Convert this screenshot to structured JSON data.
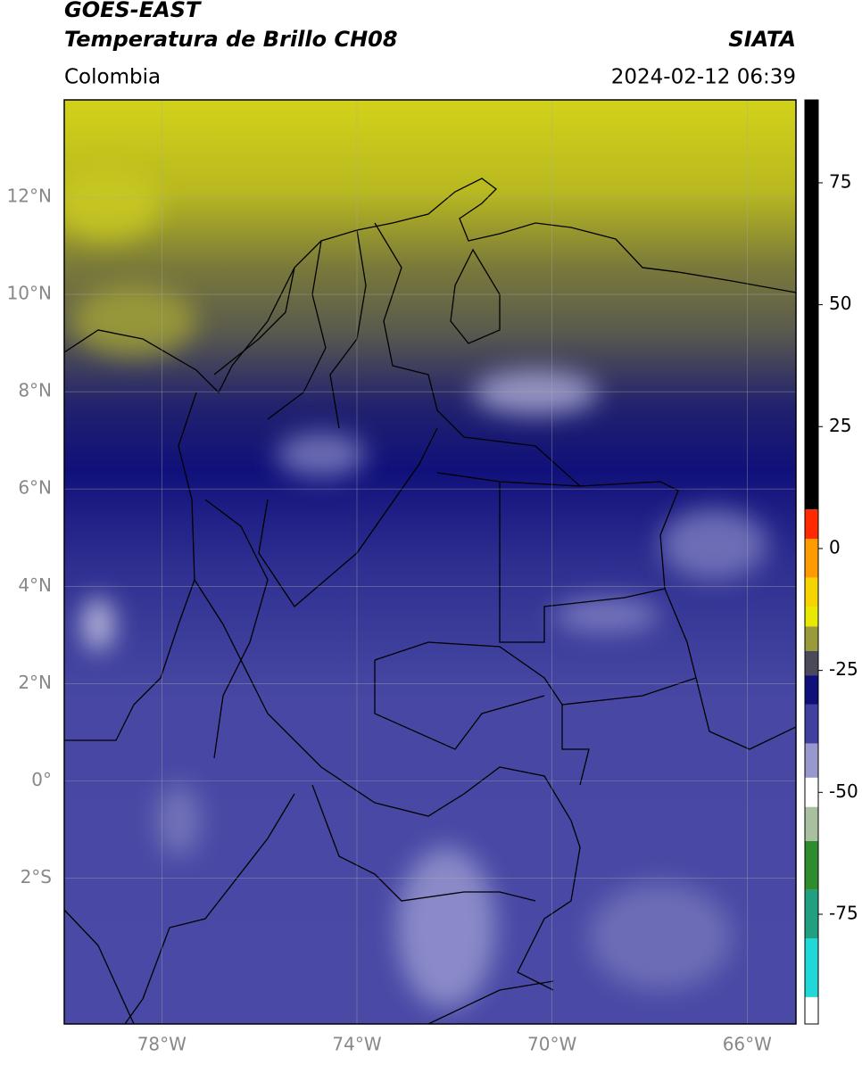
{
  "header": {
    "title": "GOES-EAST",
    "subtitle": "Temperatura de Brillo CH08",
    "source": "SIATA",
    "region": "Colombia",
    "datetime": "2024-02-12 06:39"
  },
  "map": {
    "xlim": [
      -80,
      -65
    ],
    "ylim": [
      -5,
      14
    ],
    "xticks": [
      {
        "value": -78,
        "label": "78°W"
      },
      {
        "value": -74,
        "label": "74°W"
      },
      {
        "value": -70,
        "label": "70°W"
      },
      {
        "value": -66,
        "label": "66°W"
      }
    ],
    "yticks": [
      {
        "value": 12,
        "label": "12°N"
      },
      {
        "value": 10,
        "label": "10°N"
      },
      {
        "value": 8,
        "label": "8°N"
      },
      {
        "value": 6,
        "label": "6°N"
      },
      {
        "value": 4,
        "label": "4°N"
      },
      {
        "value": 2,
        "label": "2°N"
      },
      {
        "value": 0,
        "label": "0°"
      },
      {
        "value": -2,
        "label": "2°S"
      }
    ],
    "grid": true
  },
  "colorbar": {
    "ylim": [
      -97.5,
      92
    ],
    "yticks": [
      75,
      50,
      25,
      0,
      -25,
      -50,
      -75
    ],
    "segments": [
      {
        "from": 92,
        "to": 8,
        "color": "#000000"
      },
      {
        "from": 8,
        "to": 2,
        "color": "#ff2a00"
      },
      {
        "from": 2,
        "to": -6,
        "color": "#ff9a00"
      },
      {
        "from": -6,
        "to": -12,
        "color": "#f5d400"
      },
      {
        "from": -12,
        "to": -16,
        "color": "#e8e800"
      },
      {
        "from": -16,
        "to": -21,
        "color": "#9a9a3a"
      },
      {
        "from": -21,
        "to": -26,
        "color": "#4a4a5a"
      },
      {
        "from": -26,
        "to": -32,
        "color": "#10107a"
      },
      {
        "from": -32,
        "to": -40,
        "color": "#4040a0"
      },
      {
        "from": -40,
        "to": -47,
        "color": "#9898cc"
      },
      {
        "from": -47,
        "to": -53,
        "color": "#ffffff"
      },
      {
        "from": -53,
        "to": -60,
        "color": "#a8c0a0"
      },
      {
        "from": -60,
        "to": -70,
        "color": "#2e8b2e"
      },
      {
        "from": -70,
        "to": -80,
        "color": "#20a080"
      },
      {
        "from": -80,
        "to": -92,
        "color": "#20d8d8"
      },
      {
        "from": -92,
        "to": -97.5,
        "color": "#ffffff"
      }
    ]
  }
}
